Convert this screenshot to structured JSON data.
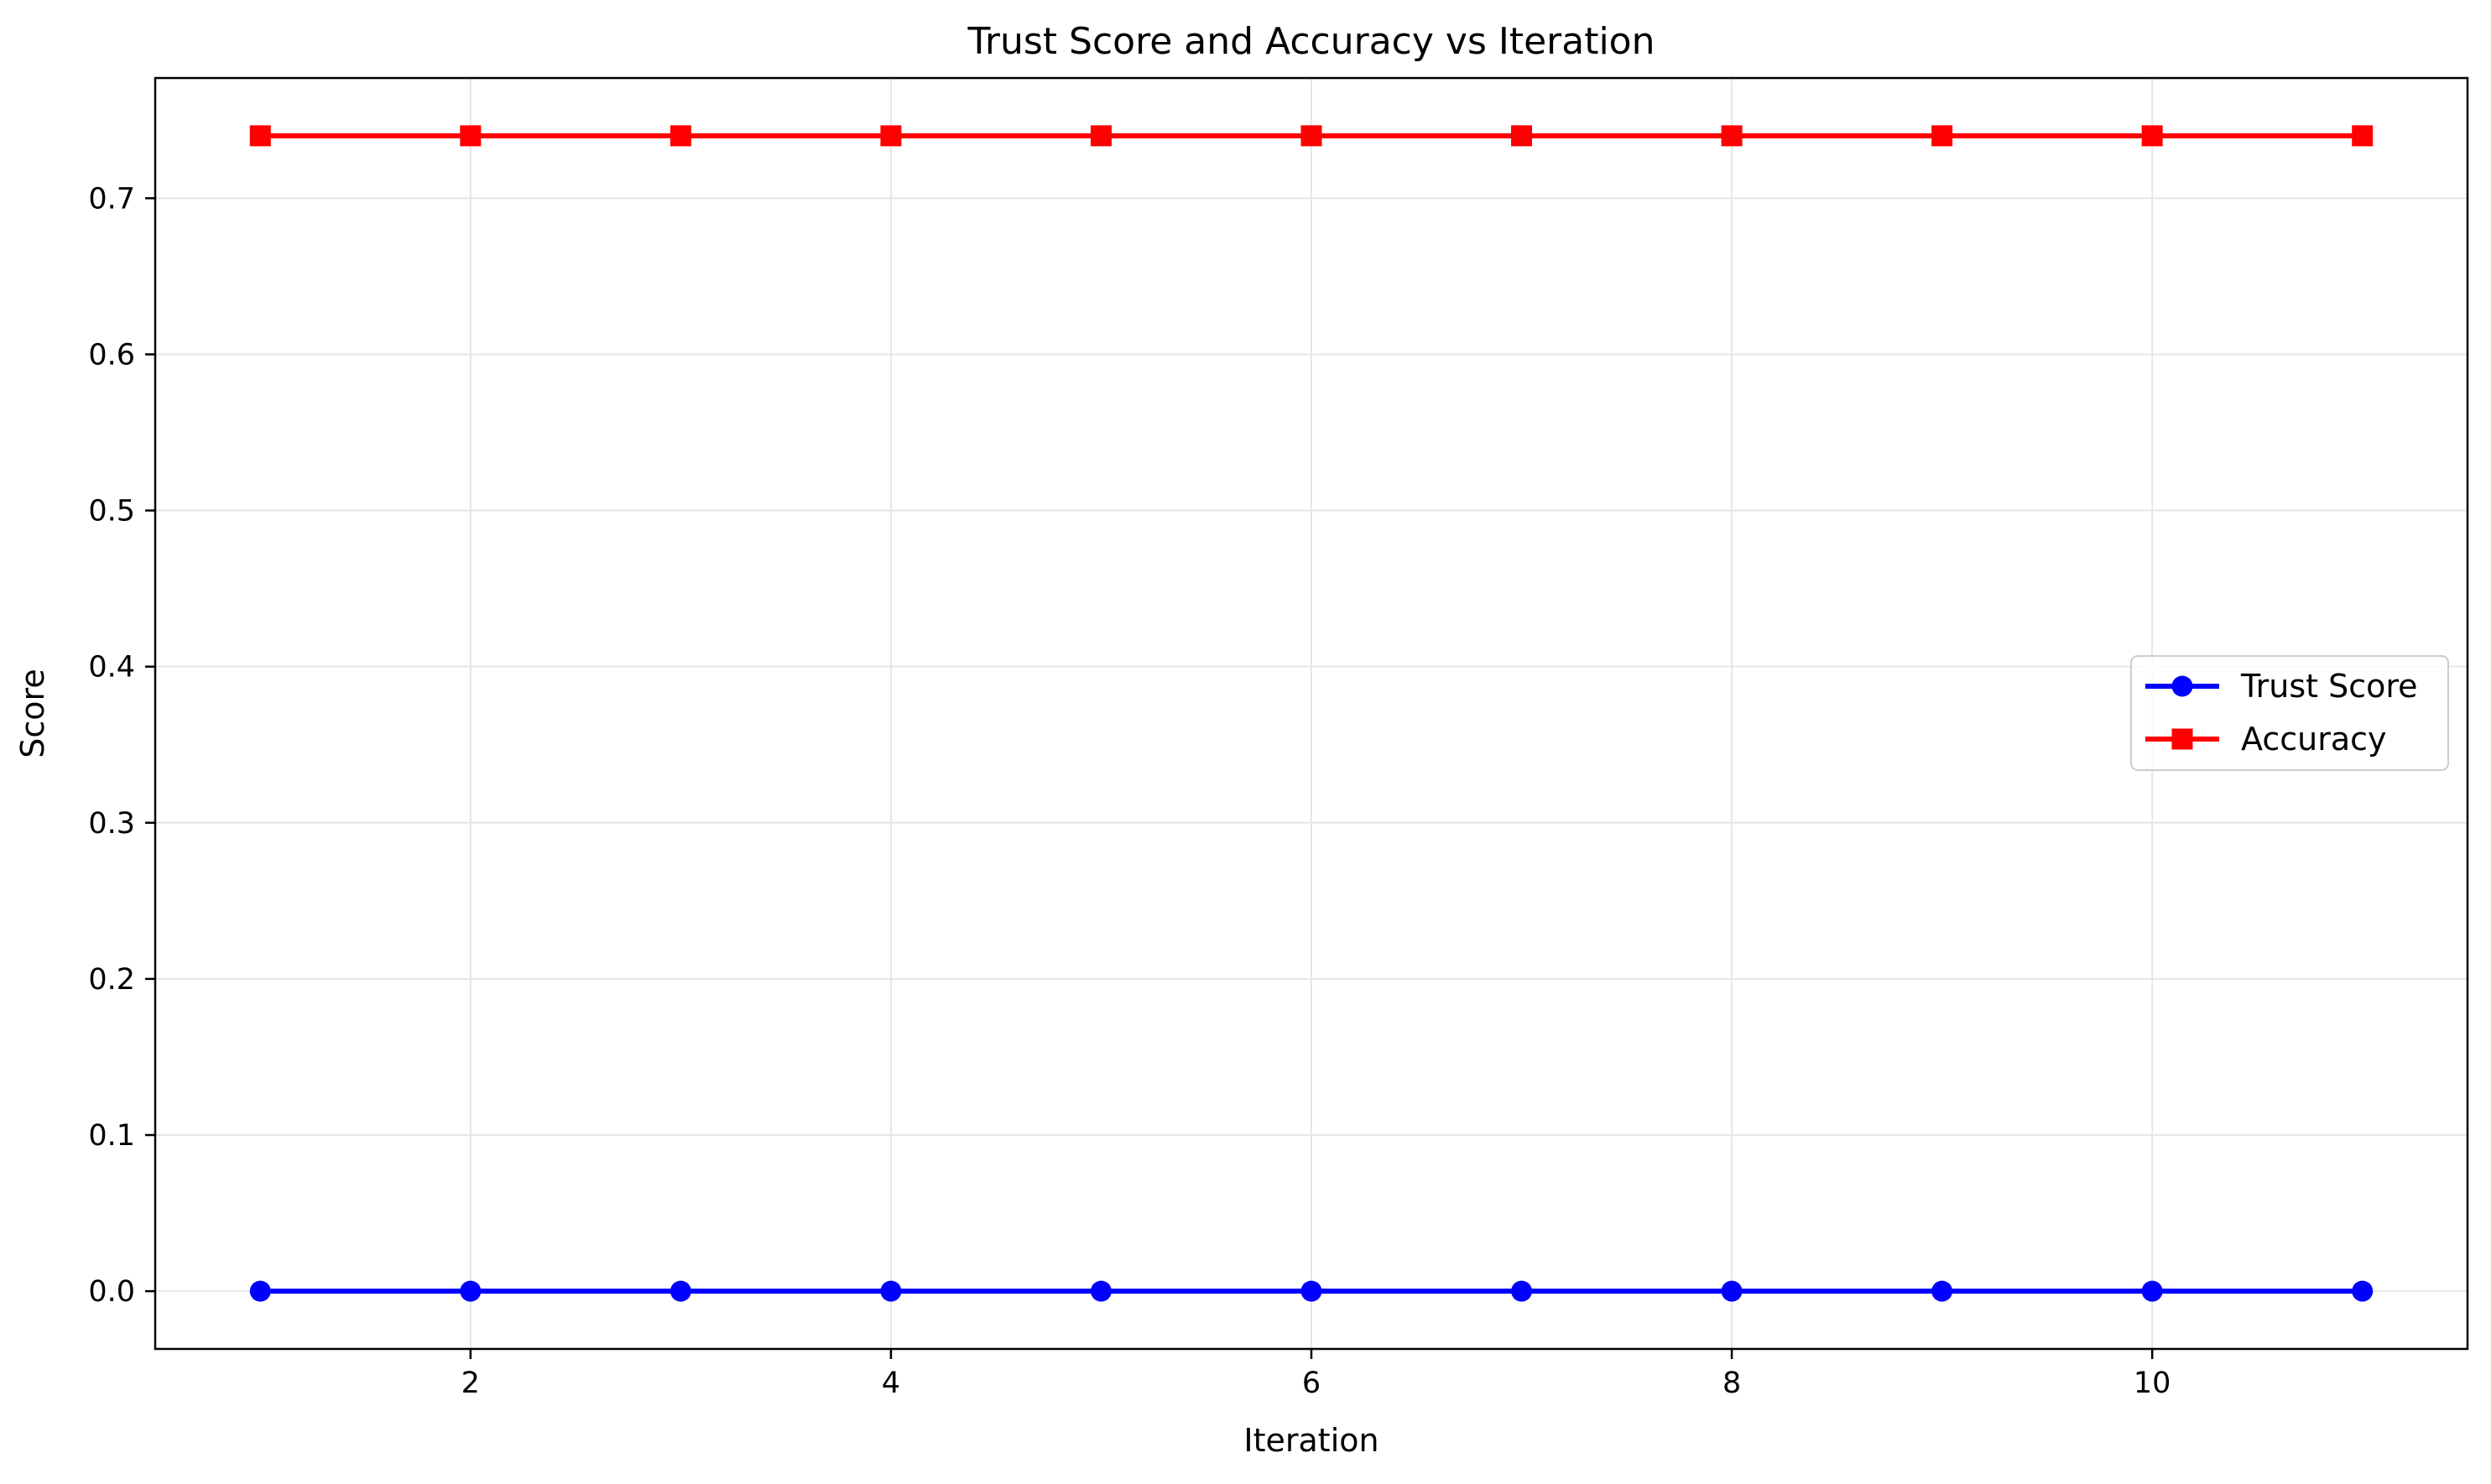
{
  "chart_data": {
    "type": "line",
    "title": "Trust Score and Accuracy vs Iteration",
    "xlabel": "Iteration",
    "ylabel": "Score",
    "xlim": [
      0.5,
      11.5
    ],
    "ylim": [
      -0.037,
      0.777
    ],
    "x_ticks": [
      2,
      4,
      6,
      8,
      10
    ],
    "y_ticks": [
      0.0,
      0.1,
      0.2,
      0.3,
      0.4,
      0.5,
      0.6,
      0.7
    ],
    "x_tick_labels": [
      "2",
      "4",
      "6",
      "8",
      "10"
    ],
    "y_tick_labels": [
      "0.0",
      "0.1",
      "0.2",
      "0.3",
      "0.4",
      "0.5",
      "0.6",
      "0.7"
    ],
    "grid": true,
    "legend_position": "center-right",
    "x": [
      1,
      2,
      3,
      4,
      5,
      6,
      7,
      8,
      9,
      10,
      11
    ],
    "series": [
      {
        "name": "Trust Score",
        "values": [
          0,
          0,
          0,
          0,
          0,
          0,
          0,
          0,
          0,
          0,
          0
        ],
        "color": "#0000ff",
        "marker": "circle"
      },
      {
        "name": "Accuracy",
        "values": [
          0.74,
          0.74,
          0.74,
          0.74,
          0.74,
          0.74,
          0.74,
          0.74,
          0.74,
          0.74,
          0.74
        ],
        "color": "#ff0000",
        "marker": "square"
      }
    ]
  }
}
